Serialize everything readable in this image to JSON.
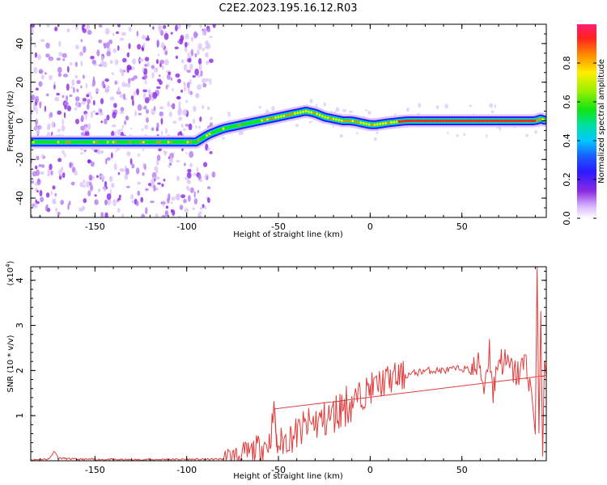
{
  "title": "C2E2.2023.195.16.12.R03",
  "spectrogram": {
    "xlabel": "Height of straight line (km)",
    "ylabel": "Frequency (Hz)",
    "xlim": [
      -185,
      96
    ],
    "ylim": [
      -50,
      50
    ],
    "xticks": [
      -150,
      -100,
      -50,
      0,
      50
    ],
    "yticks": [
      -40,
      -20,
      0,
      20,
      40
    ],
    "tick_labels_x": [
      "-150",
      "-100",
      "-50",
      "0",
      "50"
    ],
    "tick_labels_y": [
      "-40",
      "-20",
      "0",
      "20",
      "40"
    ],
    "colorbar": {
      "label": "Normalized spectral amplitude",
      "range": [
        0,
        1
      ],
      "ticks": [
        0.0,
        0.2,
        0.4,
        0.6,
        0.8
      ],
      "tick_labels": [
        "0.0",
        "0.2",
        "0.4",
        "0.6",
        "0.8"
      ]
    }
  },
  "chart_data": [
    {
      "type": "heatmap",
      "title": "C2E2.2023.195.16.12.R03",
      "xlabel": "Height of straight line (km)",
      "ylabel": "Frequency (Hz)",
      "xlim": [
        -185,
        96
      ],
      "ylim": [
        -50,
        50
      ],
      "ridge": {
        "x": [
          -185,
          -170,
          -150,
          -130,
          -110,
          -95,
          -88,
          -80,
          -70,
          -60,
          -50,
          -45,
          -40,
          -35,
          -30,
          -25,
          -20,
          -15,
          -10,
          -5,
          0,
          3,
          10,
          20,
          30,
          50,
          70,
          85,
          90,
          93,
          96
        ],
        "y": [
          -11,
          -11,
          -11,
          -11,
          -11,
          -11,
          -7,
          -4,
          -2,
          0,
          2,
          3,
          4,
          5,
          4,
          2,
          1,
          0,
          0,
          -1,
          -2,
          -2,
          -1,
          0,
          0,
          0,
          0,
          0,
          0,
          1,
          0
        ]
      },
      "noise_region_x": [
        -185,
        -85
      ],
      "colorbar_label": "Normalized spectral amplitude"
    },
    {
      "type": "line",
      "xlabel": "Height of straight line (km)",
      "ylabel": "SNR (10 * v/v)",
      "yscale_label": "(x10",
      "yscale_exp": "4",
      "xlim": [
        -185,
        96
      ],
      "ylim": [
        0,
        4.3
      ],
      "yticks": [
        1,
        2,
        3,
        4
      ],
      "series": [
        {
          "color": "#e23b3b",
          "x": [
            -185,
            -180,
            -175,
            -172,
            -170,
            -160,
            -150,
            -130,
            -110,
            -100,
            -90,
            -80,
            -75,
            -70,
            -65,
            -60,
            -55,
            -52,
            -51,
            -50,
            -45,
            -40,
            -35,
            -30,
            -25,
            -20,
            -15,
            -10,
            -5,
            0,
            5,
            10,
            15,
            20,
            25,
            30,
            35,
            40,
            50,
            55,
            60,
            62,
            65,
            67,
            70,
            75,
            80,
            85,
            88,
            90,
            91,
            92,
            93,
            94,
            95,
            96
          ],
          "y": [
            0.02,
            0.03,
            0.04,
            0.22,
            0.06,
            0.03,
            0.03,
            0.02,
            0.03,
            0.03,
            0.03,
            0.04,
            0.08,
            0.12,
            0.18,
            0.3,
            0.4,
            1.15,
            0.3,
            0.35,
            0.5,
            0.6,
            0.75,
            0.85,
            0.9,
            1.0,
            1.2,
            1.3,
            1.45,
            1.6,
            1.7,
            1.8,
            1.85,
            1.9,
            1.95,
            2.0,
            2.0,
            2.0,
            2.05,
            2.0,
            2.1,
            1.6,
            2.5,
            1.5,
            2.3,
            2.1,
            1.9,
            2.2,
            1.5,
            0.6,
            4.3,
            0.6,
            3.3,
            0.1,
            2.2,
            1.9
          ]
        }
      ],
      "tick_labels_x": [
        "-150",
        "-100",
        "-50",
        "0",
        "50"
      ],
      "tick_labels_y": [
        "1",
        "2",
        "3",
        "4"
      ]
    }
  ]
}
